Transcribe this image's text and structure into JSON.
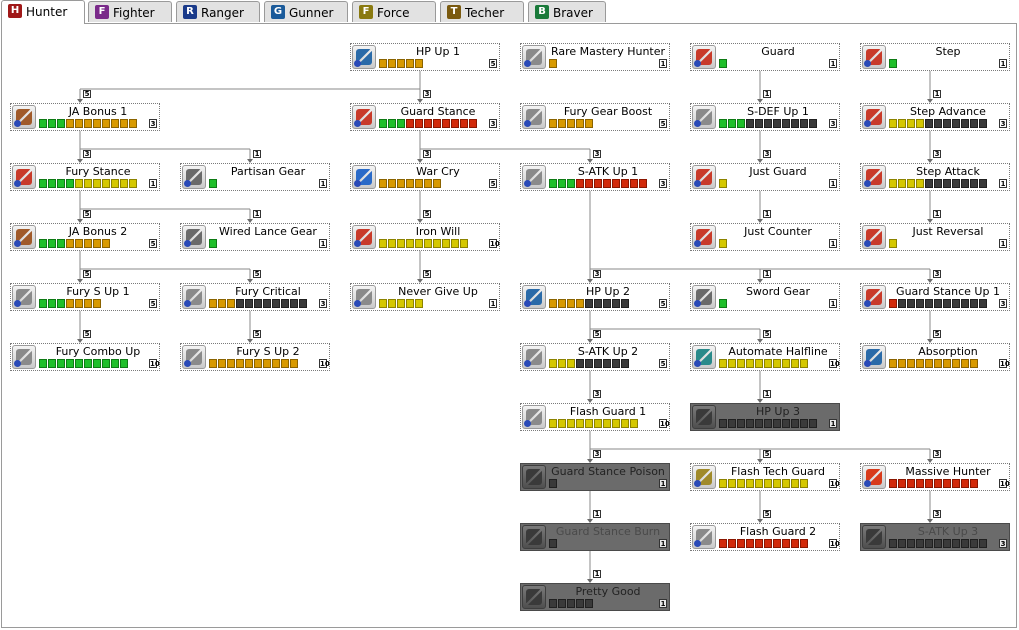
{
  "tabs": [
    {
      "label": "Hunter",
      "icon": "hunter-class-icon",
      "color": "#a01818",
      "active": true
    },
    {
      "label": "Fighter",
      "icon": "fighter-class-icon",
      "color": "#7a2a8a",
      "active": false
    },
    {
      "label": "Ranger",
      "icon": "ranger-class-icon",
      "color": "#1a3a8a",
      "active": false
    },
    {
      "label": "Gunner",
      "icon": "gunner-class-icon",
      "color": "#1a5a9a",
      "active": false
    },
    {
      "label": "Force",
      "icon": "force-class-icon",
      "color": "#8a7a10",
      "active": false
    },
    {
      "label": "Techer",
      "icon": "techer-class-icon",
      "color": "#7a5a10",
      "active": false
    },
    {
      "label": "Braver",
      "icon": "braver-class-icon",
      "color": "#1a7a3a",
      "active": false
    }
  ],
  "colors": {
    "green": "#1fbf2a",
    "yellow": "#d5c800",
    "orange": "#d89a00",
    "red": "#d22a0a",
    "empty": "#3a3a3a",
    "locked": "#6b6b6b"
  },
  "skills": [
    {
      "id": "hp_up_1",
      "name": "HP Up 1",
      "pips": "ooooo",
      "max": "5",
      "icon": "hp-icon"
    },
    {
      "id": "rare_mastery_hunter",
      "name": "Rare Mastery Hunter",
      "pips": "o",
      "max": "1",
      "icon": "sword-icon"
    },
    {
      "id": "guard",
      "name": "Guard",
      "pips": "g",
      "max": "1",
      "icon": "shield-icon"
    },
    {
      "id": "step",
      "name": "Step",
      "pips": "g",
      "max": "1",
      "icon": "step-icon"
    },
    {
      "id": "ja_bonus_1",
      "name": "JA Bonus 1",
      "pips": "gggoooooooo",
      "max": "3",
      "icon": "ring-icon"
    },
    {
      "id": "guard_stance",
      "name": "Guard Stance",
      "pips": "gggrrrrrrrr",
      "max": "3",
      "icon": "guard-stance-icon"
    },
    {
      "id": "fury_gear_boost",
      "name": "Fury Gear Boost",
      "pips": "ooooo",
      "max": "5",
      "icon": "sword-icon"
    },
    {
      "id": "s_def_up_1",
      "name": "S-DEF Up 1",
      "pips": "gggkkkkkkkk",
      "max": "3",
      "icon": "sword-icon"
    },
    {
      "id": "step_advance",
      "name": "Step Advance",
      "pips": "yyyykkkkkkk",
      "max": "3",
      "icon": "step-icon"
    },
    {
      "id": "fury_stance",
      "name": "Fury Stance",
      "pips": "ggggyyyyyyy",
      "max": "1",
      "icon": "fury-icon"
    },
    {
      "id": "partisan_gear",
      "name": "Partisan Gear",
      "pips": "g",
      "max": "1",
      "icon": "partisan-icon"
    },
    {
      "id": "war_cry",
      "name": "War Cry",
      "pips": "ooooooo",
      "max": "5",
      "icon": "war-cry-icon"
    },
    {
      "id": "s_atk_up_1",
      "name": "S-ATK Up 1",
      "pips": "gggrrrrrrrr",
      "max": "3",
      "icon": "sword-icon"
    },
    {
      "id": "just_guard",
      "name": "Just Guard",
      "pips": "y",
      "max": "1",
      "icon": "shield-icon"
    },
    {
      "id": "step_attack",
      "name": "Step Attack",
      "pips": "yyyykkkkkkk",
      "max": "1",
      "icon": "step-icon"
    },
    {
      "id": "ja_bonus_2",
      "name": "JA Bonus 2",
      "pips": "gggooooo",
      "max": "5",
      "icon": "ring-icon"
    },
    {
      "id": "wired_lance_gear",
      "name": "Wired Lance Gear",
      "pips": "g",
      "max": "1",
      "icon": "wired-lance-icon"
    },
    {
      "id": "iron_will",
      "name": "Iron Will",
      "pips": "yyyyyyyyyy",
      "max": "10",
      "icon": "shield-icon"
    },
    {
      "id": "just_counter",
      "name": "Just Counter",
      "pips": "y",
      "max": "1",
      "icon": "shield-icon"
    },
    {
      "id": "just_reversal",
      "name": "Just Reversal",
      "pips": "y",
      "max": "1",
      "icon": "step-icon"
    },
    {
      "id": "fury_s_up_1",
      "name": "Fury S Up 1",
      "pips": "gggoooo",
      "max": "5",
      "icon": "sword-icon"
    },
    {
      "id": "fury_critical",
      "name": "Fury Critical",
      "pips": "oookkkkkkkk",
      "max": "3",
      "icon": "sword-icon"
    },
    {
      "id": "never_give_up",
      "name": "Never Give Up",
      "pips": "yyyyy",
      "max": "1",
      "icon": "sword-icon"
    },
    {
      "id": "hp_up_2",
      "name": "HP Up 2",
      "pips": "ooookkkkk",
      "max": "5",
      "icon": "hp-icon"
    },
    {
      "id": "sword_gear",
      "name": "Sword Gear",
      "pips": "g",
      "max": "1",
      "icon": "sword-gear-icon"
    },
    {
      "id": "guard_stance_up_1",
      "name": "Guard Stance Up 1",
      "pips": "rkkkkkkkkkk",
      "max": "3",
      "icon": "guard-stance-icon"
    },
    {
      "id": "fury_combo_up",
      "name": "Fury Combo Up",
      "pips": "gggggggggg",
      "max": "10",
      "icon": "sword-icon"
    },
    {
      "id": "fury_s_up_2",
      "name": "Fury S Up 2",
      "pips": "oooooooooo",
      "max": "10",
      "icon": "sword-icon"
    },
    {
      "id": "s_atk_up_2",
      "name": "S-ATK Up 2",
      "pips": "yyykkkkkk",
      "max": "5",
      "icon": "sword-icon"
    },
    {
      "id": "automate_halfline",
      "name": "Automate Halfline",
      "pips": "yyyyyyyyyy",
      "max": "10",
      "icon": "automate-icon"
    },
    {
      "id": "absorption",
      "name": "Absorption",
      "pips": "oooooooooo",
      "max": "10",
      "icon": "absorption-icon"
    },
    {
      "id": "hp_up_3",
      "name": "HP Up 3",
      "pips": "kkkkkkkkkkk",
      "max": "1",
      "icon": "hp-icon",
      "locked": true
    },
    {
      "id": "flash_guard_1",
      "name": "Flash Guard 1",
      "pips": "yyyyyyyyyy",
      "max": "10",
      "icon": "sword-icon"
    },
    {
      "id": "guard_stance_poison",
      "name": "Guard Stance Poison",
      "pips": "k",
      "max": "1",
      "icon": "poison-icon",
      "locked": true
    },
    {
      "id": "flash_tech_guard",
      "name": "Flash Tech Guard",
      "pips": "yyyyyyyyyy",
      "max": "10",
      "icon": "flash-tech-icon"
    },
    {
      "id": "massive_hunter",
      "name": "Massive Hunter",
      "pips": "rrrrrrrrrr",
      "max": "10",
      "icon": "massive-hunter-icon"
    },
    {
      "id": "guard_stance_burn",
      "name": "Guard Stance Burn",
      "pips": "k",
      "max": "1",
      "icon": "burn-icon",
      "locked": true,
      "dim": true
    },
    {
      "id": "flash_guard_2",
      "name": "Flash Guard 2",
      "pips": "rrrrrrrrrr",
      "max": "10",
      "icon": "sword-icon"
    },
    {
      "id": "s_atk_up_3",
      "name": "S-ATK Up 3",
      "pips": "kkkkkkkkkkk",
      "max": "3",
      "icon": "sword-icon",
      "locked": true,
      "dim": true
    },
    {
      "id": "pretty_good",
      "name": "Pretty Good",
      "pips": "kkkkk",
      "max": "1",
      "icon": "pretty-good-icon",
      "locked": true
    }
  ],
  "requirements": [
    {
      "from": "hp_up_1",
      "to": "ja_bonus_1",
      "level": "5"
    },
    {
      "from": "hp_up_1",
      "to": "guard_stance",
      "level": "3"
    },
    {
      "from": "guard",
      "to": "s_def_up_1",
      "level": "1"
    },
    {
      "from": "step",
      "to": "step_advance",
      "level": "1"
    },
    {
      "from": "ja_bonus_1",
      "to": "fury_stance",
      "level": "3"
    },
    {
      "from": "ja_bonus_1",
      "to": "partisan_gear",
      "level": "1"
    },
    {
      "from": "guard_stance",
      "to": "war_cry",
      "level": "3"
    },
    {
      "from": "guard_stance",
      "to": "s_atk_up_1",
      "level": "3"
    },
    {
      "from": "s_def_up_1",
      "to": "just_guard",
      "level": "3"
    },
    {
      "from": "step_advance",
      "to": "step_attack",
      "level": "3"
    },
    {
      "from": "fury_stance",
      "to": "ja_bonus_2",
      "level": "5"
    },
    {
      "from": "fury_stance",
      "to": "wired_lance_gear",
      "level": "1"
    },
    {
      "from": "war_cry",
      "to": "iron_will",
      "level": "5"
    },
    {
      "from": "just_guard",
      "to": "just_counter",
      "level": "1"
    },
    {
      "from": "step_attack",
      "to": "just_reversal",
      "level": "1"
    },
    {
      "from": "ja_bonus_2",
      "to": "fury_s_up_1",
      "level": "5"
    },
    {
      "from": "ja_bonus_2",
      "to": "fury_critical",
      "level": "5"
    },
    {
      "from": "iron_will",
      "to": "never_give_up",
      "level": "5"
    },
    {
      "from": "s_atk_up_1",
      "to": "hp_up_2",
      "level": "3"
    },
    {
      "from": "s_atk_up_1",
      "to": "sword_gear",
      "level": "1"
    },
    {
      "from": "s_atk_up_1",
      "to": "guard_stance_up_1",
      "level": "3"
    },
    {
      "from": "fury_s_up_1",
      "to": "fury_combo_up",
      "level": "5"
    },
    {
      "from": "fury_critical",
      "to": "fury_s_up_2",
      "level": "5"
    },
    {
      "from": "hp_up_2",
      "to": "s_atk_up_2",
      "level": "5"
    },
    {
      "from": "hp_up_2",
      "to": "automate_halfline",
      "level": "5"
    },
    {
      "from": "guard_stance_up_1",
      "to": "absorption",
      "level": "5"
    },
    {
      "from": "automate_halfline",
      "to": "hp_up_3",
      "level": "1"
    },
    {
      "from": "s_atk_up_2",
      "to": "flash_guard_1",
      "level": "3"
    },
    {
      "from": "flash_guard_1",
      "to": "guard_stance_poison",
      "level": "3"
    },
    {
      "from": "flash_guard_1",
      "to": "flash_tech_guard",
      "level": "5"
    },
    {
      "from": "flash_guard_1",
      "to": "massive_hunter",
      "level": "3"
    },
    {
      "from": "guard_stance_poison",
      "to": "guard_stance_burn",
      "level": "1"
    },
    {
      "from": "flash_tech_guard",
      "to": "flash_guard_2",
      "level": "5"
    },
    {
      "from": "massive_hunter",
      "to": "s_atk_up_3",
      "level": "3"
    },
    {
      "from": "guard_stance_burn",
      "to": "pretty_good",
      "level": "1"
    }
  ]
}
